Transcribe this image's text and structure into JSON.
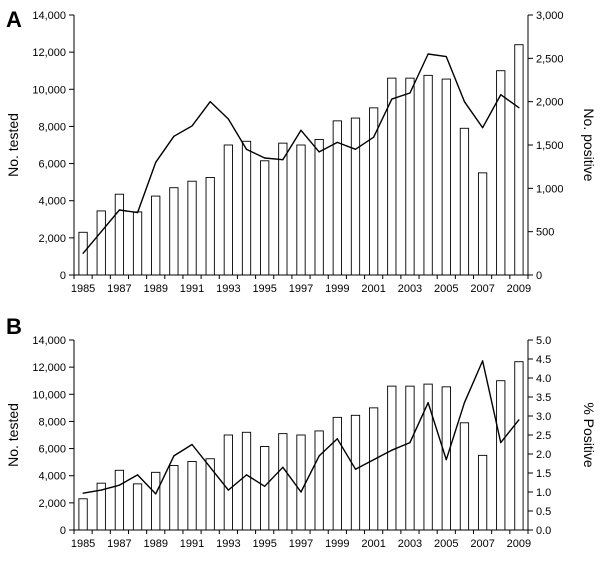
{
  "chart_data": [
    {
      "panel": "A",
      "type": "bar+line",
      "x": [
        1985,
        1986,
        1987,
        1988,
        1989,
        1990,
        1991,
        1992,
        1993,
        1994,
        1995,
        1996,
        1997,
        1998,
        1999,
        2000,
        2001,
        2002,
        2003,
        2004,
        2005,
        2006,
        2007,
        2008,
        2009
      ],
      "x_tick_labels": [
        "1985",
        "1987",
        "1989",
        "1991",
        "1993",
        "1995",
        "1997",
        "1999",
        "2001",
        "2003",
        "2005",
        "2007",
        "2009"
      ],
      "series": [
        {
          "kind": "bar",
          "axis": "left",
          "values": [
            2300,
            3450,
            4350,
            3400,
            4250,
            4700,
            5050,
            5250,
            7000,
            7200,
            6150,
            7100,
            7000,
            7300,
            8300,
            8450,
            9000,
            10600,
            10600,
            10750,
            10550,
            7900,
            5500,
            11000,
            12400
          ]
        },
        {
          "kind": "line",
          "axis": "right",
          "values": [
            250,
            500,
            750,
            720,
            1300,
            1600,
            1720,
            2000,
            1800,
            1450,
            1350,
            1330,
            1670,
            1420,
            1530,
            1450,
            1590,
            2030,
            2100,
            2550,
            2520,
            2000,
            1700,
            2080,
            1930
          ]
        }
      ],
      "ylabel_left": "No. tested",
      "ylabel_right": "No. positive",
      "ylim_left": [
        0,
        14000
      ],
      "ylim_right": [
        0,
        3000
      ],
      "yticks_left": [
        "0",
        "2,000",
        "4,000",
        "6,000",
        "8,000",
        "10,000",
        "12,000",
        "14,000"
      ],
      "yticks_right": [
        "0",
        "500",
        "1,000",
        "1,500",
        "2,000",
        "2,500",
        "3,000"
      ],
      "grid": false
    },
    {
      "panel": "B",
      "type": "bar+line",
      "x": [
        1985,
        1986,
        1987,
        1988,
        1989,
        1990,
        1991,
        1992,
        1993,
        1994,
        1995,
        1996,
        1997,
        1998,
        1999,
        2000,
        2001,
        2002,
        2003,
        2004,
        2005,
        2006,
        2007,
        2008,
        2009
      ],
      "x_tick_labels": [
        "1985",
        "1987",
        "1989",
        "1991",
        "1993",
        "1995",
        "1997",
        "1999",
        "2001",
        "2003",
        "2005",
        "2007",
        "2009"
      ],
      "series": [
        {
          "kind": "bar",
          "axis": "left",
          "values": [
            2300,
            3450,
            4400,
            3400,
            4250,
            4750,
            5050,
            5250,
            7000,
            7200,
            6150,
            7100,
            7000,
            7300,
            8300,
            8450,
            9000,
            10600,
            10600,
            10750,
            10550,
            7900,
            5500,
            11000,
            12400
          ]
        },
        {
          "kind": "line",
          "axis": "right",
          "values": [
            0.97,
            1.05,
            1.18,
            1.45,
            0.95,
            1.95,
            2.25,
            1.65,
            1.05,
            1.45,
            1.15,
            1.65,
            1.0,
            1.95,
            2.4,
            1.6,
            1.85,
            2.1,
            2.3,
            3.35,
            1.85,
            3.35,
            4.45,
            2.3,
            2.9
          ]
        }
      ],
      "ylabel_left": "No. tested",
      "ylabel_right": "% Positive",
      "ylim_left": [
        0,
        14000
      ],
      "ylim_right": [
        0,
        5
      ],
      "yticks_left": [
        "0",
        "2,000",
        "4,000",
        "6,000",
        "8,000",
        "10,000",
        "12,000",
        "14,000"
      ],
      "yticks_right": [
        "0.0",
        "0.5",
        "1.0",
        "1.5",
        "2.0",
        "2.5",
        "3.0",
        "3.5",
        "4.0",
        "4.5",
        "5.0"
      ],
      "grid": false
    }
  ]
}
